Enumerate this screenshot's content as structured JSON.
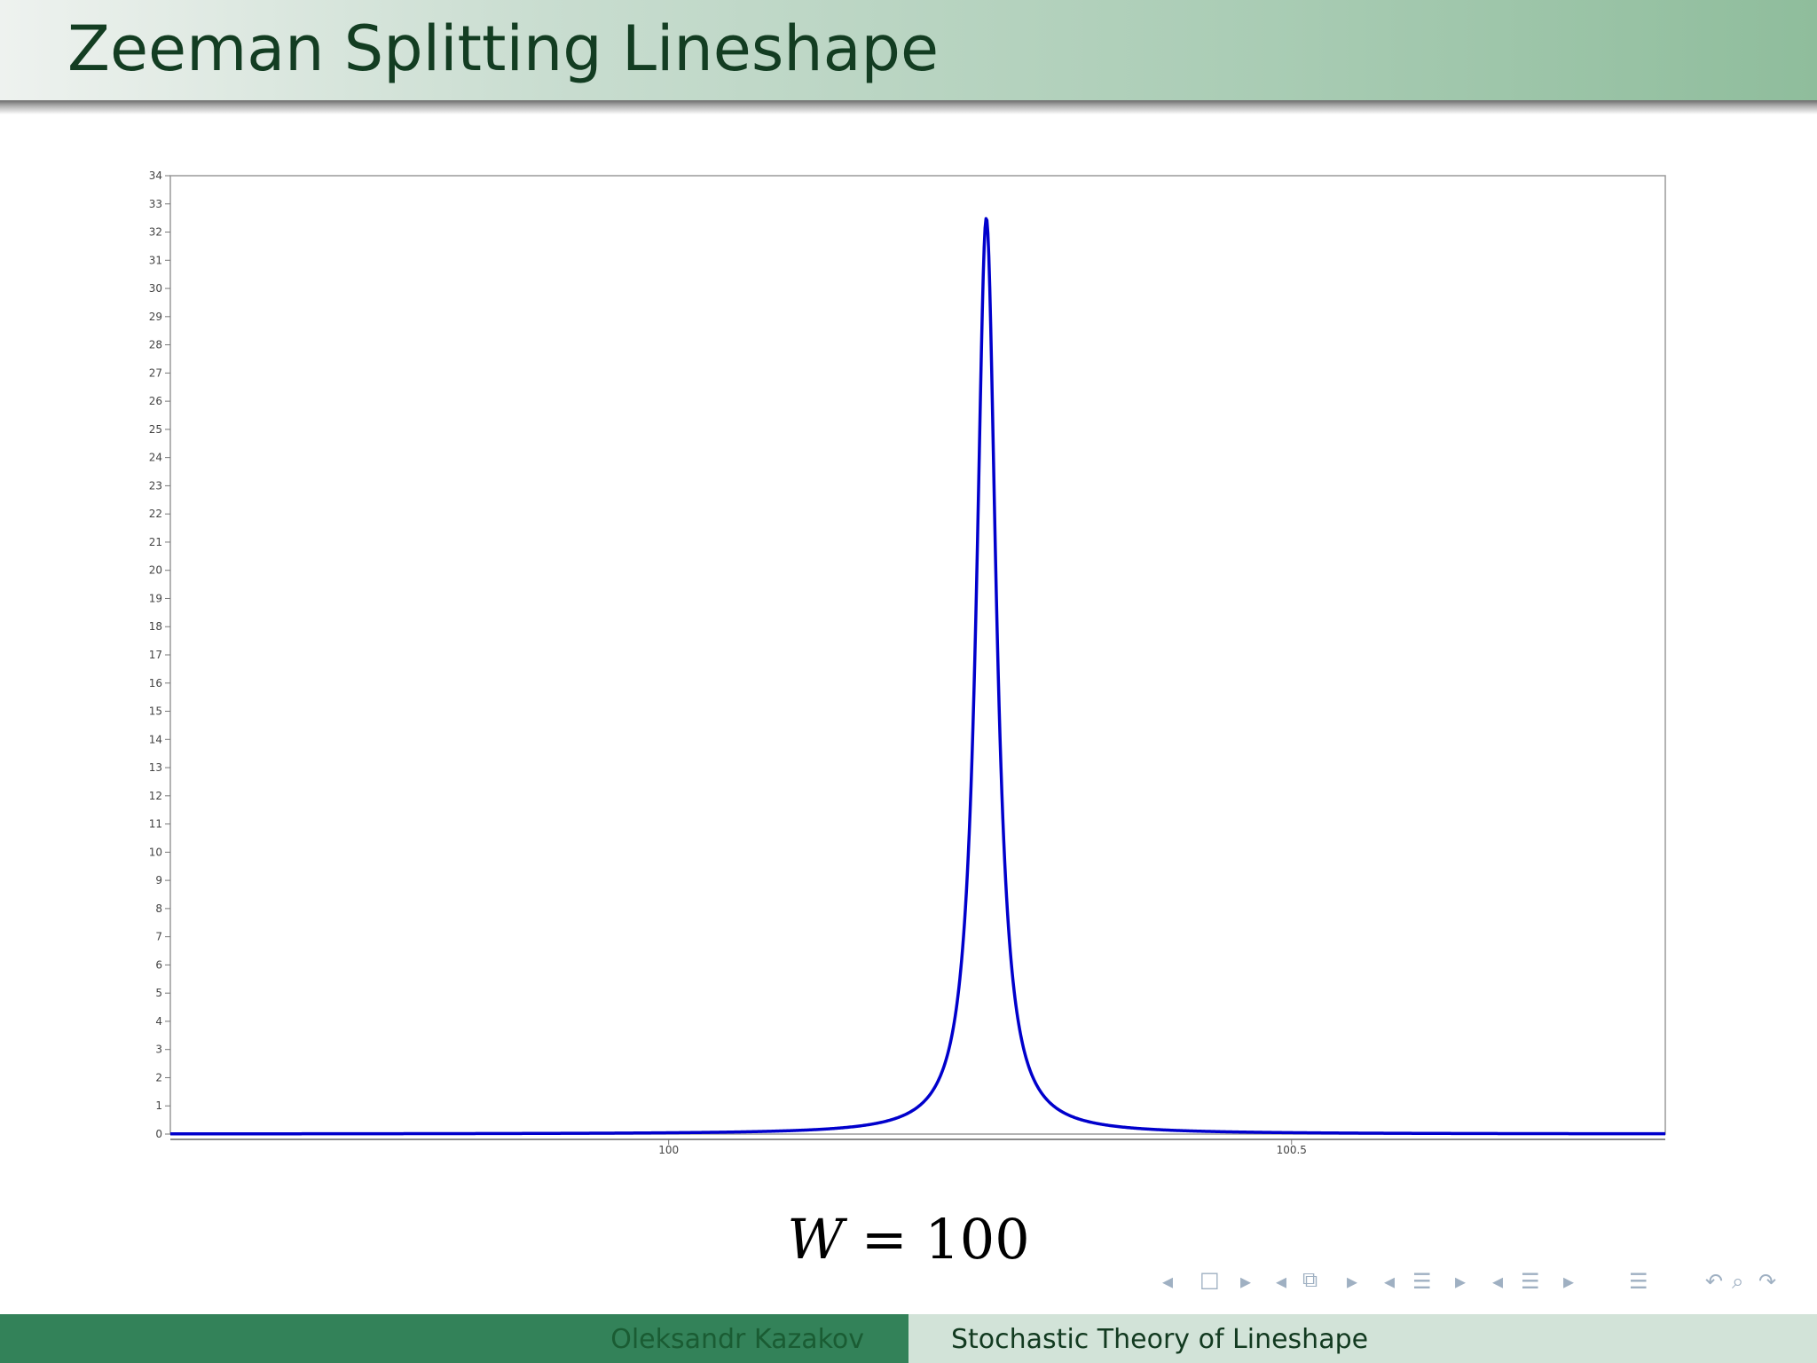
{
  "slide": {
    "title": "Zeeman Splitting Lineshape",
    "formula_var": "W",
    "formula_rest": " = 100",
    "footer": {
      "author": "Oleksandr Kazakov",
      "talk_title": "Stochastic Theory of Lineshape"
    },
    "nav_icons": [
      "nav-prev-frame-icon",
      "nav-frame-icon",
      "nav-next-frame-icon",
      "nav-prev-subsection-icon",
      "nav-subsection-icon",
      "nav-next-subsection-icon",
      "nav-prev-section-icon",
      "nav-section-icon",
      "nav-next-section-icon",
      "nav-prev-doc-icon",
      "nav-doc-icon",
      "nav-next-doc-icon",
      "nav-toc-icon",
      "nav-back-icon",
      "nav-search-icon",
      "nav-forward-icon"
    ]
  },
  "chart_data": {
    "type": "line",
    "title": "",
    "xlabel": "",
    "ylabel": "",
    "xlim": [
      99.6,
      100.8
    ],
    "ylim": [
      0,
      34
    ],
    "x_ticks": [
      "100",
      "100.5"
    ],
    "x_tick_values": [
      100,
      100.5
    ],
    "y_ticks": [
      "0",
      "1",
      "2",
      "3",
      "4",
      "5",
      "6",
      "7",
      "8",
      "9",
      "10",
      "11",
      "12",
      "13",
      "14",
      "15",
      "16",
      "17",
      "18",
      "19",
      "20",
      "21",
      "22",
      "23",
      "24",
      "25",
      "26",
      "27",
      "28",
      "29",
      "30",
      "31",
      "32",
      "33",
      "34"
    ],
    "grid": false,
    "series": [
      {
        "color": "#0000cc",
        "peak_x": 100.255,
        "peak_y": 32.5,
        "half_width": 0.0096,
        "x": [
          99.6,
          99.8,
          99.95,
          100.05,
          100.1,
          100.15,
          100.2,
          100.22,
          100.235,
          100.245,
          100.255,
          100.265,
          100.275,
          100.29,
          100.31,
          100.36,
          100.41,
          100.46,
          100.56,
          100.71,
          100.8
        ],
        "values": [
          0.01,
          0.05,
          0.12,
          0.25,
          0.4,
          0.8,
          2.9,
          5.5,
          11.0,
          21.5,
          32.5,
          21.5,
          11.0,
          5.5,
          2.9,
          0.8,
          0.4,
          0.25,
          0.12,
          0.05,
          0.01
        ]
      }
    ]
  }
}
